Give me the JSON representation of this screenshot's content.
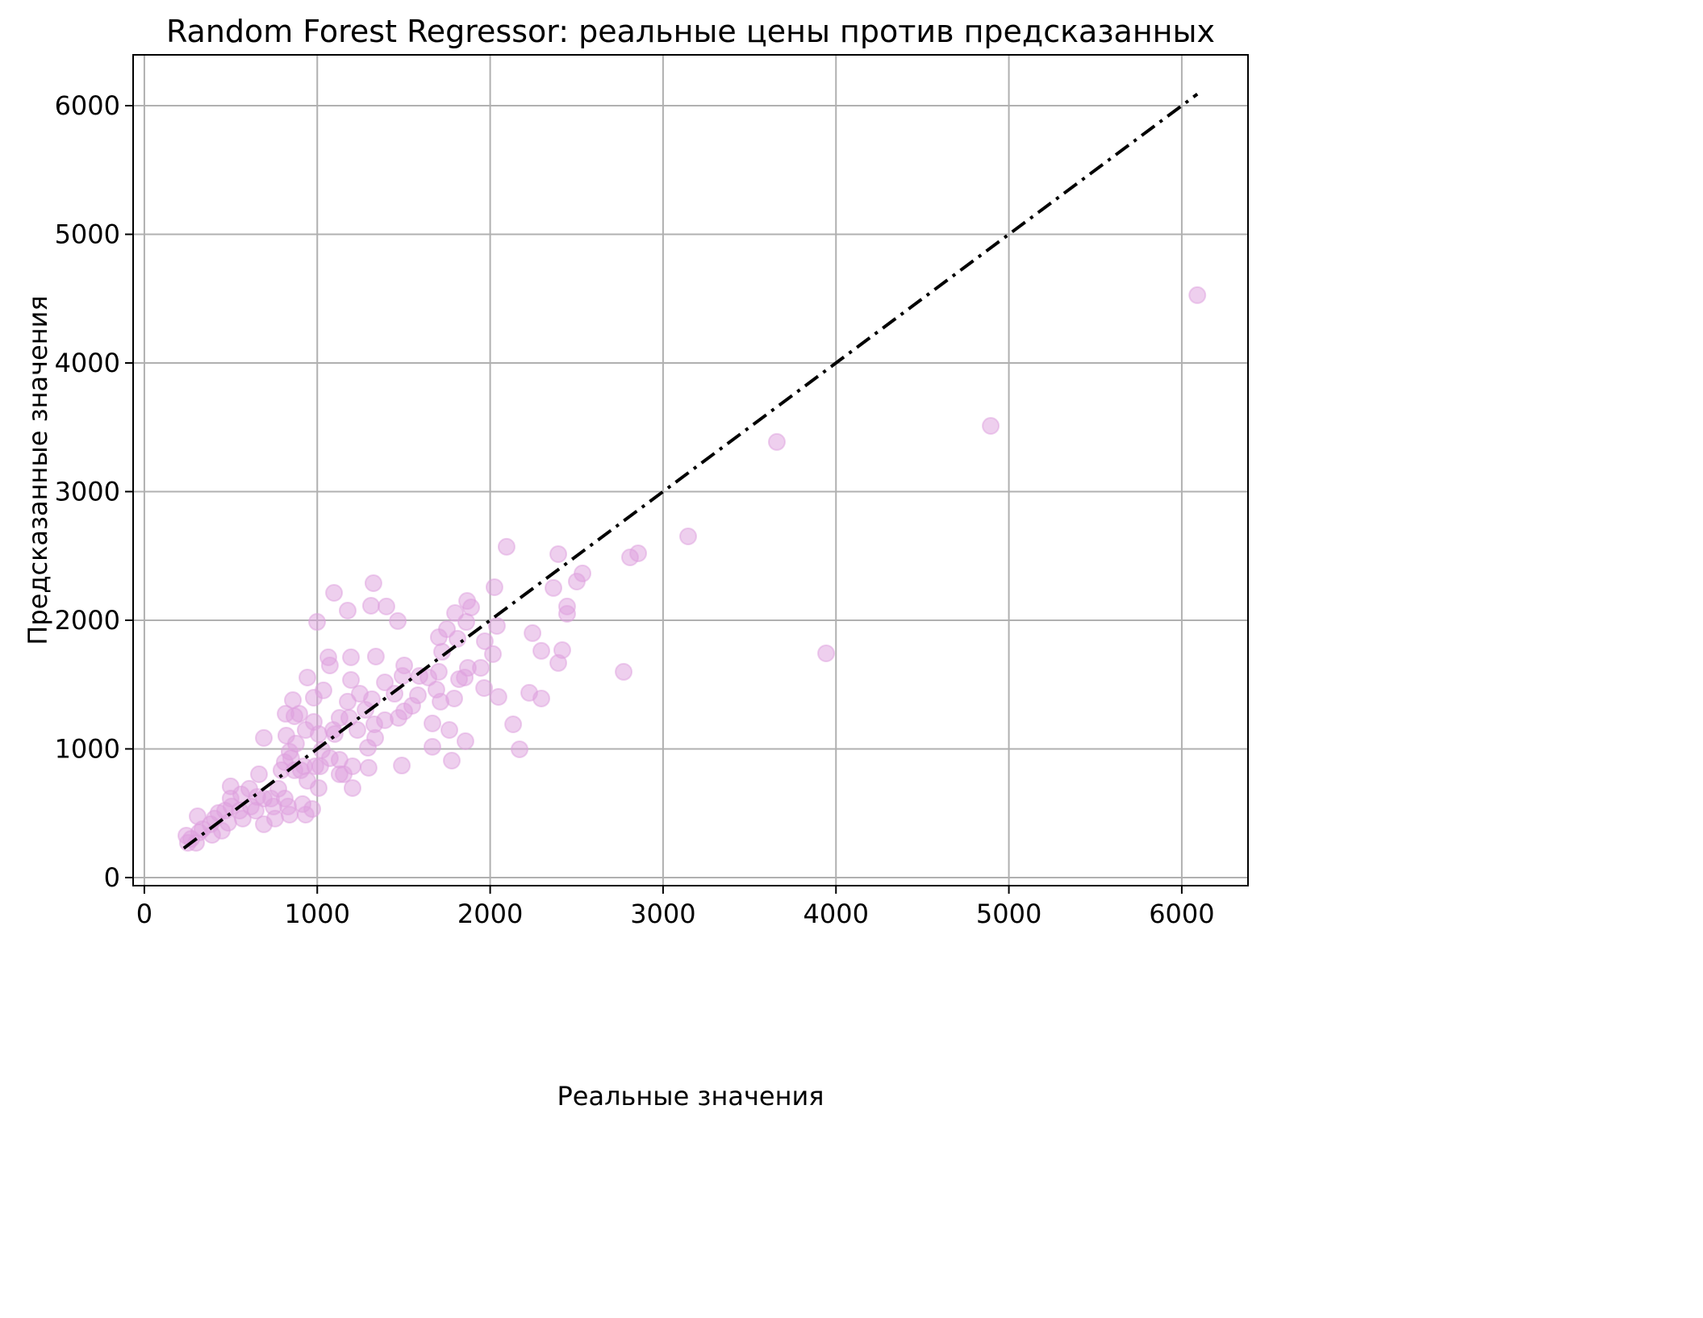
{
  "chart_data": {
    "type": "scatter",
    "title": "Random Forest Regressor: реальные цены против предсказанных",
    "xlabel": "Реальные значения",
    "ylabel": "Предсказанные значения",
    "color": "#dda0dd",
    "opacity": 0.5,
    "grid": true,
    "xlim": [
      -65,
      6383
    ],
    "ylim": [
      -63,
      6395
    ],
    "xticks": [
      0,
      1000,
      2000,
      3000,
      4000,
      5000,
      6000
    ],
    "yticks": [
      0,
      1000,
      2000,
      3000,
      4000,
      5000,
      6000
    ],
    "x": [
      6090,
      4895,
      3658,
      3943,
      3145,
      2856,
      2809,
      2772,
      2095,
      2394,
      2534,
      2501,
      2366,
      2445,
      2445,
      2417,
      2394,
      2245,
      2296,
      2226,
      2296,
      2133,
      2170,
      2025,
      2039,
      2016,
      2048,
      1969,
      1965,
      1946,
      1890,
      1867,
      1862,
      1811,
      1797,
      1853,
      1871,
      1857,
      1778,
      1764,
      1820,
      1792,
      1703,
      1703,
      1713,
      1689,
      1666,
      1666,
      1750,
      1722,
      1643,
      1591,
      1549,
      1582,
      1503,
      1493,
      1503,
      1470,
      1489,
      1447,
      1466,
      1400,
      1325,
      1311,
      1339,
      1391,
      1391,
      1316,
      1330,
      1335,
      1246,
      1279,
      1293,
      1297,
      1176,
      1097,
      1064,
      1073,
      1036,
      999,
      943,
      1195,
      1195,
      1204,
      1204,
      1153,
      1176,
      1185,
      1129,
      1101,
      1129,
      1129,
      1073,
      1017,
      1008,
      1008,
      980,
      933,
      896,
      859,
      868,
      817,
      821,
      877,
      840,
      812,
      793,
      868,
      924,
      915,
      933,
      943,
      691,
      663,
      691,
      747,
      733,
      775,
      812,
      831,
      840,
      616,
      607,
      560,
      551,
      499,
      499,
      504,
      467,
      429,
      406,
      383,
      336,
      308,
      271,
      243,
      252,
      299,
      317,
      448,
      392,
      485,
      569,
      644,
      756,
      653,
      691,
      849,
      1027,
      905,
      971,
      980,
      1092,
      1232,
      989
    ],
    "y": [
      4527,
      3511,
      3386,
      1743,
      2652,
      2520,
      2489,
      1599,
      2571,
      2514,
      2364,
      2301,
      2251,
      2107,
      2050,
      1768,
      1668,
      1900,
      1762,
      1436,
      1392,
      1191,
      997,
      2257,
      1956,
      1737,
      1404,
      1837,
      1473,
      1630,
      2100,
      2150,
      1987,
      1856,
      2056,
      1555,
      1630,
      1060,
      909,
      1147,
      1542,
      1392,
      1868,
      1599,
      1367,
      1461,
      1198,
      1016,
      1931,
      1755,
      1555,
      1567,
      1335,
      1417,
      1649,
      1567,
      1292,
      1241,
      871,
      1429,
      1994,
      2107,
      2288,
      2113,
      1718,
      1517,
      1223,
      1386,
      1191,
      1085,
      1429,
      1304,
      1009,
      853,
      2075,
      2213,
      1712,
      1649,
      1455,
      1987,
      1555,
      1712,
      1536,
      865,
      696,
      803,
      1367,
      1241,
      1241,
      1116,
      915,
      803,
      928,
      865,
      696,
      1116,
      1210,
      1147,
      1273,
      1379,
      1254,
      1273,
      1103,
      1041,
      978,
      897,
      834,
      834,
      865,
      571,
      489,
      752,
      1085,
      803,
      414,
      552,
      614,
      690,
      614,
      552,
      489,
      552,
      690,
      646,
      520,
      709,
      614,
      552,
      520,
      502,
      458,
      414,
      376,
      476,
      301,
      326,
      270,
      270,
      351,
      364,
      332,
      426,
      458,
      520,
      458,
      627,
      614,
      928,
      991,
      834,
      533,
      1398,
      1147,
      1147,
      865
    ],
    "reference_line": {
      "color": "#000000",
      "x": [
        228,
        6090
      ],
      "y": [
        228,
        6090
      ]
    }
  }
}
